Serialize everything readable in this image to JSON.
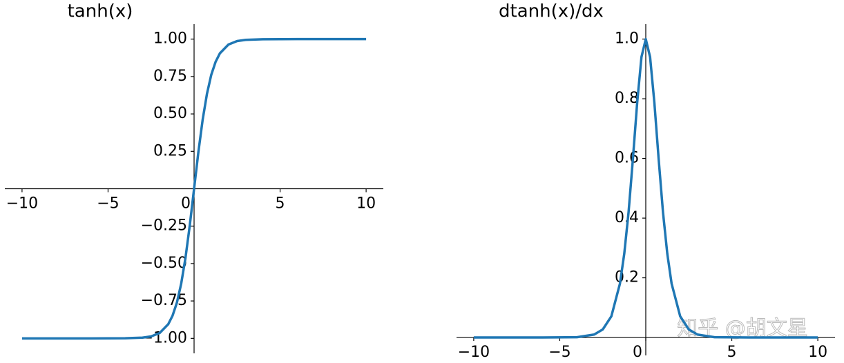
{
  "chart_data": [
    {
      "type": "line",
      "title": "tanh(x)",
      "x": [
        -10,
        -8,
        -6,
        -4,
        -3,
        -2.5,
        -2,
        -1.5,
        -1.25,
        -1,
        -0.75,
        -0.5,
        -0.25,
        0,
        0.25,
        0.5,
        0.75,
        1,
        1.25,
        1.5,
        2,
        2.5,
        3,
        4,
        6,
        8,
        10
      ],
      "series": [
        {
          "color": "#1f77b4",
          "values": [
            -1,
            -1,
            -1,
            -0.999,
            -0.995,
            -0.987,
            -0.964,
            -0.905,
            -0.848,
            -0.762,
            -0.635,
            -0.462,
            -0.245,
            0,
            0.245,
            0.462,
            0.635,
            0.762,
            0.848,
            0.905,
            0.964,
            0.987,
            0.995,
            0.999,
            1,
            1,
            1
          ]
        }
      ],
      "xlim": [
        -11,
        11
      ],
      "ylim": [
        -1.1,
        1.1
      ],
      "xticks": [
        {
          "value": -10,
          "label": "−10"
        },
        {
          "value": -5,
          "label": "−5"
        },
        0,
        5,
        10
      ],
      "yticks": [
        {
          "value": -1,
          "label": "−1.00"
        },
        {
          "value": -0.75,
          "label": "−0.75"
        },
        {
          "value": -0.5,
          "label": "−0.50"
        },
        {
          "value": -0.25,
          "label": "−0.25"
        },
        0.25,
        {
          "value": 0.5,
          "label": "0.50"
        },
        0.75,
        {
          "value": 1,
          "label": "1.00"
        }
      ]
    },
    {
      "type": "line",
      "title": "dtanh(x)/dx",
      "x": [
        -10,
        -8,
        -6,
        -4,
        -3,
        -2.5,
        -2,
        -1.5,
        -1.25,
        -1,
        -0.75,
        -0.5,
        -0.25,
        0,
        0.25,
        0.5,
        0.75,
        1,
        1.25,
        1.5,
        2,
        2.5,
        3,
        4,
        6,
        8,
        10
      ],
      "series": [
        {
          "color": "#1f77b4",
          "values": [
            0,
            0,
            0,
            0.001,
            0.01,
            0.027,
            0.071,
            0.181,
            0.281,
            0.42,
            0.597,
            0.787,
            0.94,
            1,
            0.94,
            0.787,
            0.597,
            0.42,
            0.281,
            0.181,
            0.071,
            0.027,
            0.01,
            0.001,
            0,
            0,
            0
          ]
        }
      ],
      "xlim": [
        -11,
        11
      ],
      "ylim": [
        -0.06,
        1.05
      ],
      "xticks": [
        {
          "value": -10,
          "label": "−10"
        },
        {
          "value": -5,
          "label": "−5"
        },
        0,
        5,
        10
      ],
      "yticks": [
        0.2,
        0.4,
        0.6,
        0.8,
        {
          "value": 1,
          "label": "1.0"
        }
      ]
    }
  ],
  "watermark": "知乎 @胡文星"
}
